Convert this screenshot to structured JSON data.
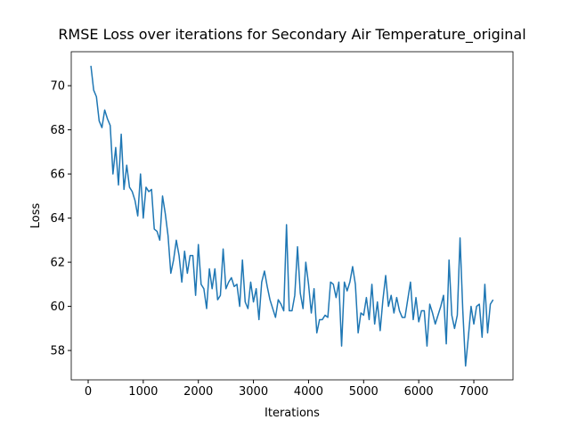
{
  "chart_data": {
    "type": "line",
    "title": "RMSE Loss over iterations for Secondary Air Temperature_original",
    "x_label": "Iterations",
    "y_label": "Loss",
    "xlim": [
      -307,
      7711
    ],
    "ylim": [
      56.67,
      71.54
    ],
    "xticks": [
      0,
      1000,
      2000,
      3000,
      4000,
      5000,
      6000,
      7000
    ],
    "yticks": [
      58,
      60,
      62,
      64,
      66,
      68,
      70
    ],
    "x": [
      50,
      100,
      150,
      200,
      250,
      300,
      350,
      400,
      450,
      500,
      550,
      600,
      650,
      700,
      750,
      800,
      850,
      900,
      950,
      1000,
      1050,
      1100,
      1150,
      1200,
      1250,
      1300,
      1350,
      1400,
      1450,
      1500,
      1550,
      1600,
      1650,
      1700,
      1750,
      1800,
      1850,
      1900,
      1950,
      2000,
      2050,
      2100,
      2150,
      2200,
      2250,
      2300,
      2350,
      2400,
      2450,
      2500,
      2550,
      2600,
      2650,
      2700,
      2750,
      2800,
      2850,
      2900,
      2950,
      3000,
      3050,
      3100,
      3150,
      3200,
      3250,
      3300,
      3350,
      3400,
      3450,
      3500,
      3550,
      3600,
      3650,
      3700,
      3750,
      3800,
      3850,
      3900,
      3950,
      4000,
      4050,
      4100,
      4150,
      4200,
      4250,
      4300,
      4350,
      4400,
      4450,
      4500,
      4550,
      4600,
      4650,
      4700,
      4750,
      4800,
      4850,
      4900,
      4950,
      5000,
      5050,
      5100,
      5150,
      5200,
      5250,
      5300,
      5350,
      5400,
      5450,
      5500,
      5550,
      5600,
      5650,
      5700,
      5750,
      5800,
      5850,
      5900,
      5950,
      6000,
      6050,
      6100,
      6150,
      6200,
      6250,
      6300,
      6350,
      6400,
      6450,
      6500,
      6550,
      6600,
      6650,
      6700,
      6750,
      6800,
      6850,
      6900,
      6950,
      7000,
      7050,
      7100,
      7150,
      7200,
      7250,
      7300,
      7350
    ],
    "series": [
      {
        "color": "#1f77b4",
        "values": [
          70.9,
          69.8,
          69.5,
          68.4,
          68.1,
          68.9,
          68.5,
          68.2,
          66.0,
          67.2,
          65.5,
          67.8,
          65.3,
          66.4,
          65.4,
          65.2,
          64.8,
          64.1,
          66.0,
          64.0,
          65.4,
          65.2,
          65.3,
          63.5,
          63.4,
          63.0,
          65.0,
          64.2,
          63.2,
          61.5,
          62.1,
          63.0,
          62.3,
          61.1,
          62.5,
          61.5,
          62.3,
          62.3,
          60.5,
          62.8,
          61.0,
          60.8,
          59.9,
          61.7,
          60.8,
          61.7,
          60.3,
          60.5,
          62.6,
          60.8,
          61.1,
          61.3,
          60.9,
          61.0,
          60.0,
          62.1,
          60.2,
          59.9,
          61.1,
          60.2,
          60.8,
          59.4,
          61.1,
          61.6,
          60.9,
          60.3,
          59.9,
          59.5,
          60.3,
          60.1,
          59.8,
          63.7,
          59.8,
          59.8,
          60.5,
          62.7,
          60.6,
          59.9,
          62.0,
          61.0,
          59.7,
          60.8,
          58.8,
          59.4,
          59.4,
          59.6,
          59.5,
          61.1,
          61.0,
          60.4,
          61.1,
          58.2,
          61.1,
          60.7,
          61.1,
          61.8,
          61.0,
          58.8,
          59.7,
          59.6,
          60.4,
          59.4,
          61.0,
          59.2,
          60.2,
          58.9,
          60.3,
          61.4,
          60.0,
          60.5,
          59.7,
          60.4,
          59.8,
          59.5,
          59.5,
          60.3,
          61.1,
          59.4,
          60.4,
          59.3,
          59.8,
          59.8,
          58.2,
          60.1,
          59.7,
          59.2,
          59.6,
          60.0,
          60.5,
          58.3,
          62.1,
          59.6,
          59.0,
          59.6,
          63.1,
          59.8,
          57.3,
          58.6,
          60.0,
          59.2,
          60.0,
          60.1,
          58.6,
          61.0,
          58.8,
          60.1,
          60.3
        ]
      }
    ]
  }
}
